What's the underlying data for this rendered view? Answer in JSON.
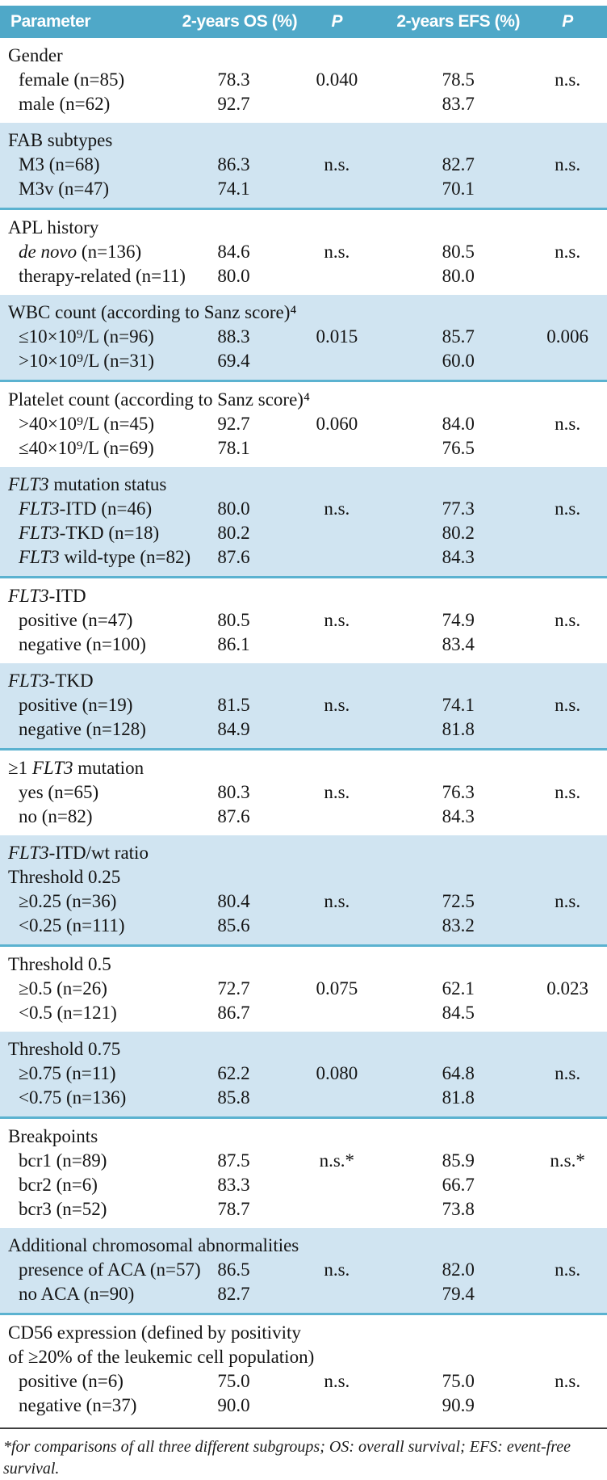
{
  "colors": {
    "header_bg": "#4fa8c8",
    "shaded_section_bg": "#d0e4f1",
    "section_rule": "#5bb2d0",
    "footnote_rule": "#3f3f3f"
  },
  "header": {
    "columns": [
      "Parameter",
      "2-years OS (%)",
      "P",
      "2-years EFS (%)",
      "P"
    ]
  },
  "table": {
    "sections": [
      {
        "id": "gender",
        "shaded": false,
        "titles": [
          {
            "pre": "Gender",
            "em": "",
            "rest": ""
          }
        ],
        "rows": [
          {
            "pre": "female (n=85)",
            "em": "",
            "rest": "",
            "os": "78.3",
            "p1": "0.040",
            "efs": "78.5",
            "p2": "n.s."
          },
          {
            "pre": "male (n=62)",
            "em": "",
            "rest": "",
            "os": "92.7",
            "p1": "",
            "efs": "83.7",
            "p2": ""
          }
        ]
      },
      {
        "id": "fab-subtypes",
        "shaded": true,
        "titles": [
          {
            "pre": "FAB subtypes",
            "em": "",
            "rest": ""
          }
        ],
        "rows": [
          {
            "pre": "M3 (n=68)",
            "em": "",
            "rest": "",
            "os": "86.3",
            "p1": "n.s.",
            "efs": "82.7",
            "p2": "n.s."
          },
          {
            "pre": "M3v (n=47)",
            "em": "",
            "rest": "",
            "os": "74.1",
            "p1": "",
            "efs": "70.1",
            "p2": ""
          }
        ]
      },
      {
        "id": "apl-history",
        "shaded": false,
        "titles": [
          {
            "pre": "APL history",
            "em": "",
            "rest": ""
          }
        ],
        "rows": [
          {
            "pre": "",
            "em": "de novo",
            "rest": " (n=136)",
            "os": "84.6",
            "p1": "n.s.",
            "efs": "80.5",
            "p2": "n.s."
          },
          {
            "pre": "therapy-related (n=11)",
            "em": "",
            "rest": "",
            "os": "80.0",
            "p1": "",
            "efs": "80.0",
            "p2": ""
          }
        ]
      },
      {
        "id": "wbc-count",
        "shaded": true,
        "titles": [
          {
            "pre": "WBC count (according to Sanz score)⁴",
            "em": "",
            "rest": ""
          }
        ],
        "rows": [
          {
            "pre": "≤10×10⁹/L (n=96)",
            "em": "",
            "rest": "",
            "os": "88.3",
            "p1": "0.015",
            "efs": "85.7",
            "p2": "0.006"
          },
          {
            "pre": ">10×10⁹/L (n=31)",
            "em": "",
            "rest": "",
            "os": "69.4",
            "p1": "",
            "efs": "60.0",
            "p2": ""
          }
        ]
      },
      {
        "id": "platelet-count",
        "shaded": false,
        "titles": [
          {
            "pre": "Platelet count (according to Sanz score)⁴",
            "em": "",
            "rest": ""
          }
        ],
        "rows": [
          {
            "pre": ">40×10⁹/L (n=45)",
            "em": "",
            "rest": "",
            "os": "92.7",
            "p1": "0.060",
            "efs": "84.0",
            "p2": "n.s."
          },
          {
            "pre": "≤40×10⁹/L (n=69)",
            "em": "",
            "rest": "",
            "os": "78.1",
            "p1": "",
            "efs": "76.5",
            "p2": ""
          }
        ]
      },
      {
        "id": "flt3-mutation-status",
        "shaded": true,
        "titles": [
          {
            "pre": "",
            "em": "FLT3",
            "rest": " mutation status"
          }
        ],
        "rows": [
          {
            "pre": "",
            "em": "FLT3",
            "rest": "-ITD (n=46)",
            "os": "80.0",
            "p1": "n.s.",
            "efs": "77.3",
            "p2": "n.s."
          },
          {
            "pre": "",
            "em": "FLT3",
            "rest": "-TKD (n=18)",
            "os": "80.2",
            "p1": "",
            "efs": "80.2",
            "p2": ""
          },
          {
            "pre": "",
            "em": "FLT3",
            "rest": " wild-type (n=82)",
            "os": "87.6",
            "p1": "",
            "efs": "84.3",
            "p2": ""
          }
        ]
      },
      {
        "id": "flt3-itd",
        "shaded": false,
        "titles": [
          {
            "pre": "",
            "em": "FLT3",
            "rest": "-ITD"
          }
        ],
        "rows": [
          {
            "pre": "positive (n=47)",
            "em": "",
            "rest": "",
            "os": "80.5",
            "p1": "n.s.",
            "efs": "74.9",
            "p2": "n.s."
          },
          {
            "pre": "negative (n=100)",
            "em": "",
            "rest": "",
            "os": "86.1",
            "p1": "",
            "efs": "83.4",
            "p2": ""
          }
        ]
      },
      {
        "id": "flt3-tkd",
        "shaded": true,
        "titles": [
          {
            "pre": "",
            "em": "FLT3",
            "rest": "-TKD"
          }
        ],
        "rows": [
          {
            "pre": "positive (n=19)",
            "em": "",
            "rest": "",
            "os": "81.5",
            "p1": "n.s.",
            "efs": "74.1",
            "p2": "n.s."
          },
          {
            "pre": "negative (n=128)",
            "em": "",
            "rest": "",
            "os": "84.9",
            "p1": "",
            "efs": "81.8",
            "p2": ""
          }
        ]
      },
      {
        "id": "ge1-flt3-mutation",
        "shaded": false,
        "titles": [
          {
            "pre": "≥1 ",
            "em": "FLT3",
            "rest": " mutation"
          }
        ],
        "rows": [
          {
            "pre": "yes (n=65)",
            "em": "",
            "rest": "",
            "os": "80.3",
            "p1": "n.s.",
            "efs": "76.3",
            "p2": "n.s."
          },
          {
            "pre": "no (n=82)",
            "em": "",
            "rest": "",
            "os": "87.6",
            "p1": "",
            "efs": "84.3",
            "p2": ""
          }
        ]
      },
      {
        "id": "flt3-itd-wt-ratio-025",
        "shaded": true,
        "titles": [
          {
            "pre": "",
            "em": "FLT3",
            "rest": "-ITD/wt ratio"
          },
          {
            "pre": "Threshold 0.25",
            "em": "",
            "rest": ""
          }
        ],
        "rows": [
          {
            "pre": "≥0.25 (n=36)",
            "em": "",
            "rest": "",
            "os": "80.4",
            "p1": "n.s.",
            "efs": "72.5",
            "p2": "n.s."
          },
          {
            "pre": "<0.25 (n=111)",
            "em": "",
            "rest": "",
            "os": "85.6",
            "p1": "",
            "efs": "83.2",
            "p2": ""
          }
        ]
      },
      {
        "id": "threshold-05",
        "shaded": false,
        "titles": [
          {
            "pre": "Threshold 0.5",
            "em": "",
            "rest": ""
          }
        ],
        "rows": [
          {
            "pre": "≥0.5 (n=26)",
            "em": "",
            "rest": "",
            "os": "72.7",
            "p1": "0.075",
            "efs": "62.1",
            "p2": "0.023"
          },
          {
            "pre": "<0.5 (n=121)",
            "em": "",
            "rest": "",
            "os": "86.7",
            "p1": "",
            "efs": "84.5",
            "p2": ""
          }
        ]
      },
      {
        "id": "threshold-075",
        "shaded": true,
        "titles": [
          {
            "pre": "Threshold 0.75",
            "em": "",
            "rest": ""
          }
        ],
        "rows": [
          {
            "pre": "≥0.75 (n=11)",
            "em": "",
            "rest": "",
            "os": "62.2",
            "p1": "0.080",
            "efs": "64.8",
            "p2": "n.s."
          },
          {
            "pre": "<0.75 (n=136)",
            "em": "",
            "rest": "",
            "os": "85.8",
            "p1": "",
            "efs": "81.8",
            "p2": ""
          }
        ]
      },
      {
        "id": "breakpoints",
        "shaded": false,
        "titles": [
          {
            "pre": "Breakpoints",
            "em": "",
            "rest": ""
          }
        ],
        "rows": [
          {
            "pre": "bcr1 (n=89)",
            "em": "",
            "rest": "",
            "os": "87.5",
            "p1": "n.s.*",
            "efs": "85.9",
            "p2": "n.s.*"
          },
          {
            "pre": "bcr2 (n=6)",
            "em": "",
            "rest": "",
            "os": "83.3",
            "p1": "",
            "efs": "66.7",
            "p2": ""
          },
          {
            "pre": "bcr3 (n=52)",
            "em": "",
            "rest": "",
            "os": "78.7",
            "p1": "",
            "efs": "73.8",
            "p2": ""
          }
        ]
      },
      {
        "id": "additional-chromosomal-abnormalities",
        "shaded": true,
        "titles": [
          {
            "pre": "Additional chromosomal abnormalities",
            "em": "",
            "rest": ""
          }
        ],
        "rows": [
          {
            "pre": "presence of ACA (n=57)",
            "em": "",
            "rest": "",
            "os": "86.5",
            "p1": "n.s.",
            "efs": "82.0",
            "p2": "n.s."
          },
          {
            "pre": "no ACA (n=90)",
            "em": "",
            "rest": "",
            "os": "82.7",
            "p1": "",
            "efs": "79.4",
            "p2": ""
          }
        ]
      },
      {
        "id": "cd56-expression",
        "shaded": false,
        "titles": [
          {
            "pre": "CD56 expression (defined by positivity",
            "em": "",
            "rest": ""
          },
          {
            "pre": "of ≥20% of the leukemic cell population)",
            "em": "",
            "rest": ""
          }
        ],
        "rows": [
          {
            "pre": "positive (n=6)",
            "em": "",
            "rest": "",
            "os": "75.0",
            "p1": "n.s.",
            "efs": "75.0",
            "p2": "n.s."
          },
          {
            "pre": "negative (n=37)",
            "em": "",
            "rest": "",
            "os": "90.0",
            "p1": "",
            "efs": "90.9",
            "p2": ""
          }
        ]
      }
    ]
  },
  "footnote": {
    "text": "*for comparisons of all three different subgroups; OS: overall survival; EFS: event-free survival."
  }
}
